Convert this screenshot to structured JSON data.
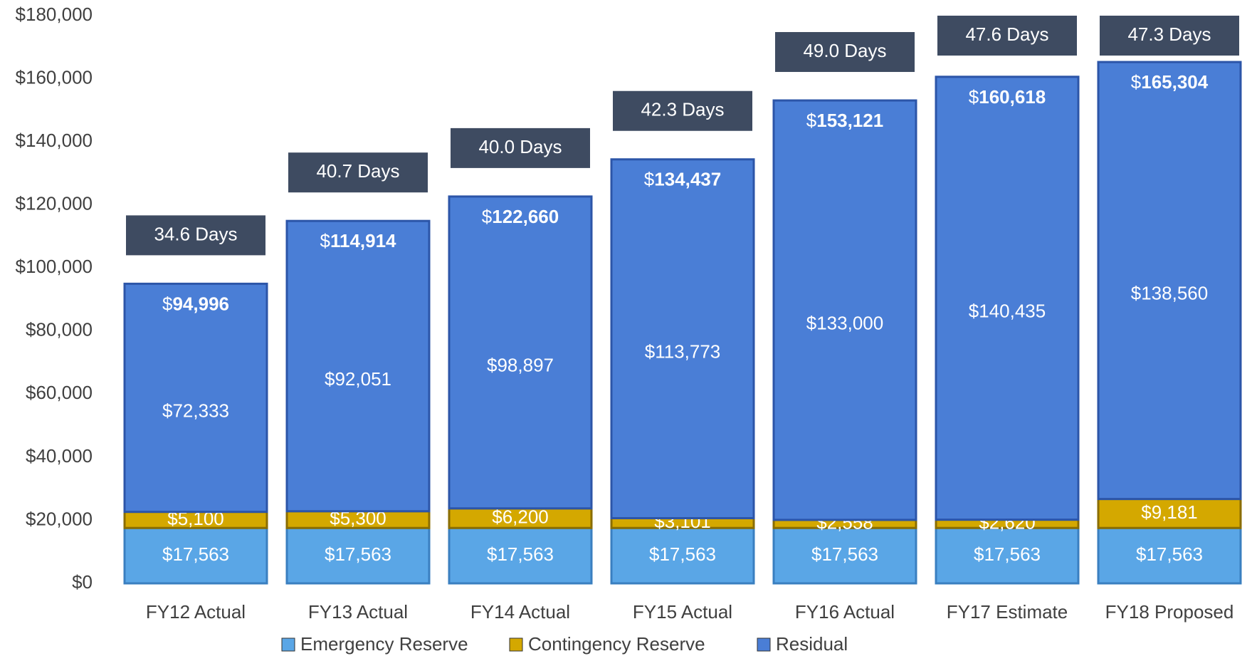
{
  "chart_data": {
    "type": "stacked_bar",
    "categories": [
      "FY12 Actual",
      "FY13 Actual",
      "FY14 Actual",
      "FY15 Actual",
      "FY16 Actual",
      "FY17 Estimate",
      "FY18 Proposed"
    ],
    "series": [
      {
        "name": "Emergency Reserve",
        "color": "#5aa6e6",
        "values": [
          17563,
          17563,
          17563,
          17563,
          17563,
          17563,
          17563
        ],
        "value_labels": [
          "$17,563",
          "$17,563",
          "$17,563",
          "$17,563",
          "$17,563",
          "$17,563",
          "$17,563"
        ]
      },
      {
        "name": "Contingency Reserve",
        "color": "#d4a800",
        "values": [
          5100,
          5300,
          6200,
          3101,
          2558,
          2620,
          9181
        ],
        "value_labels": [
          "$5,100",
          "$5,300",
          "$6,200",
          "$3,101",
          "$2,558",
          "$2,620",
          "$9,181"
        ]
      },
      {
        "name": "Residual",
        "color": "#4a7ed6",
        "values": [
          72333,
          92051,
          98897,
          113773,
          133000,
          140435,
          138560
        ],
        "value_labels": [
          "$72,333",
          "$92,051",
          "$98,897",
          "$113,773",
          "$133,000",
          "$140,435",
          "$138,560"
        ]
      }
    ],
    "total_labels": [
      "$94,996",
      "$114,914",
      "$122,660",
      "$134,437",
      "$153,121",
      "$160,618",
      "$165,304"
    ],
    "day_labels": [
      "34.6 Days",
      "40.7 Days",
      "40.0 Days",
      "42.3 Days",
      "49.0 Days",
      "47.6 Days",
      "47.3 Days"
    ],
    "ylim": [
      0,
      180000
    ],
    "yticks": [
      {
        "value": 0,
        "label": "$0"
      },
      {
        "value": 20000,
        "label": "$20,000"
      },
      {
        "value": 40000,
        "label": "$40,000"
      },
      {
        "value": 60000,
        "label": "$60,000"
      },
      {
        "value": 80000,
        "label": "$80,000"
      },
      {
        "value": 100000,
        "label": "$100,000"
      },
      {
        "value": 120000,
        "label": "$120,000"
      },
      {
        "value": 140000,
        "label": "$140,000"
      },
      {
        "value": 160000,
        "label": "$160,000"
      },
      {
        "value": 180000,
        "label": "$180,000"
      }
    ],
    "legend": "bottom",
    "grid": false
  }
}
